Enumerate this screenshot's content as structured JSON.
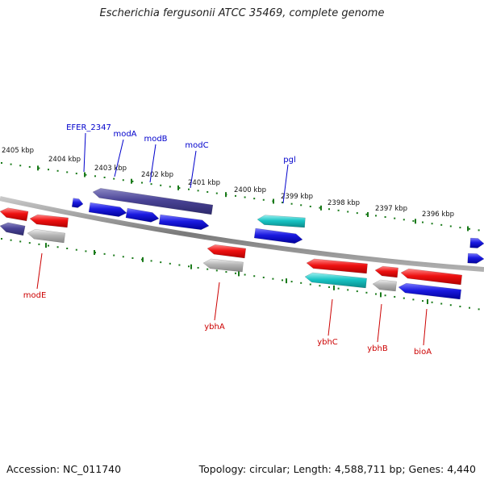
{
  "title": "Escherichia fergusonii ATCC 35469, complete genome",
  "footer": {
    "accession": "Accession: NC_011740",
    "summary": "Topology: circular; Length: 4,588,711 bp; Genes: 4,440"
  },
  "colors": {
    "forward_label": "#0000cc",
    "reverse_label": "#cc0000",
    "tick": "#1a7a1a",
    "backbone": "#808080",
    "red": "#ee1111",
    "blue": "#1a1ae0",
    "navy": "#4a4496",
    "cyan": "#18c4c4",
    "gray": "#b4b4b4"
  },
  "kbp_labels": [
    "2405 kbp",
    "2404 kbp",
    "2403 kbp",
    "2402 kbp",
    "2401 kbp",
    "2400 kbp",
    "2399 kbp",
    "2398 kbp",
    "2397 kbp",
    "2396 kbp"
  ],
  "forward_genes": [
    {
      "id": "efer2347",
      "label": "EFER_2347"
    },
    {
      "id": "moda",
      "label": "modA"
    },
    {
      "id": "modb",
      "label": "modB"
    },
    {
      "id": "modc",
      "label": "modC"
    },
    {
      "id": "pgl",
      "label": "pgl"
    }
  ],
  "reverse_genes": [
    {
      "id": "mode",
      "label": "modE"
    },
    {
      "id": "ybha",
      "label": "ybhA"
    },
    {
      "id": "ybhc",
      "label": "ybhC"
    },
    {
      "id": "ybhb",
      "label": "ybhB"
    },
    {
      "id": "bioa",
      "label": "bioA"
    }
  ]
}
